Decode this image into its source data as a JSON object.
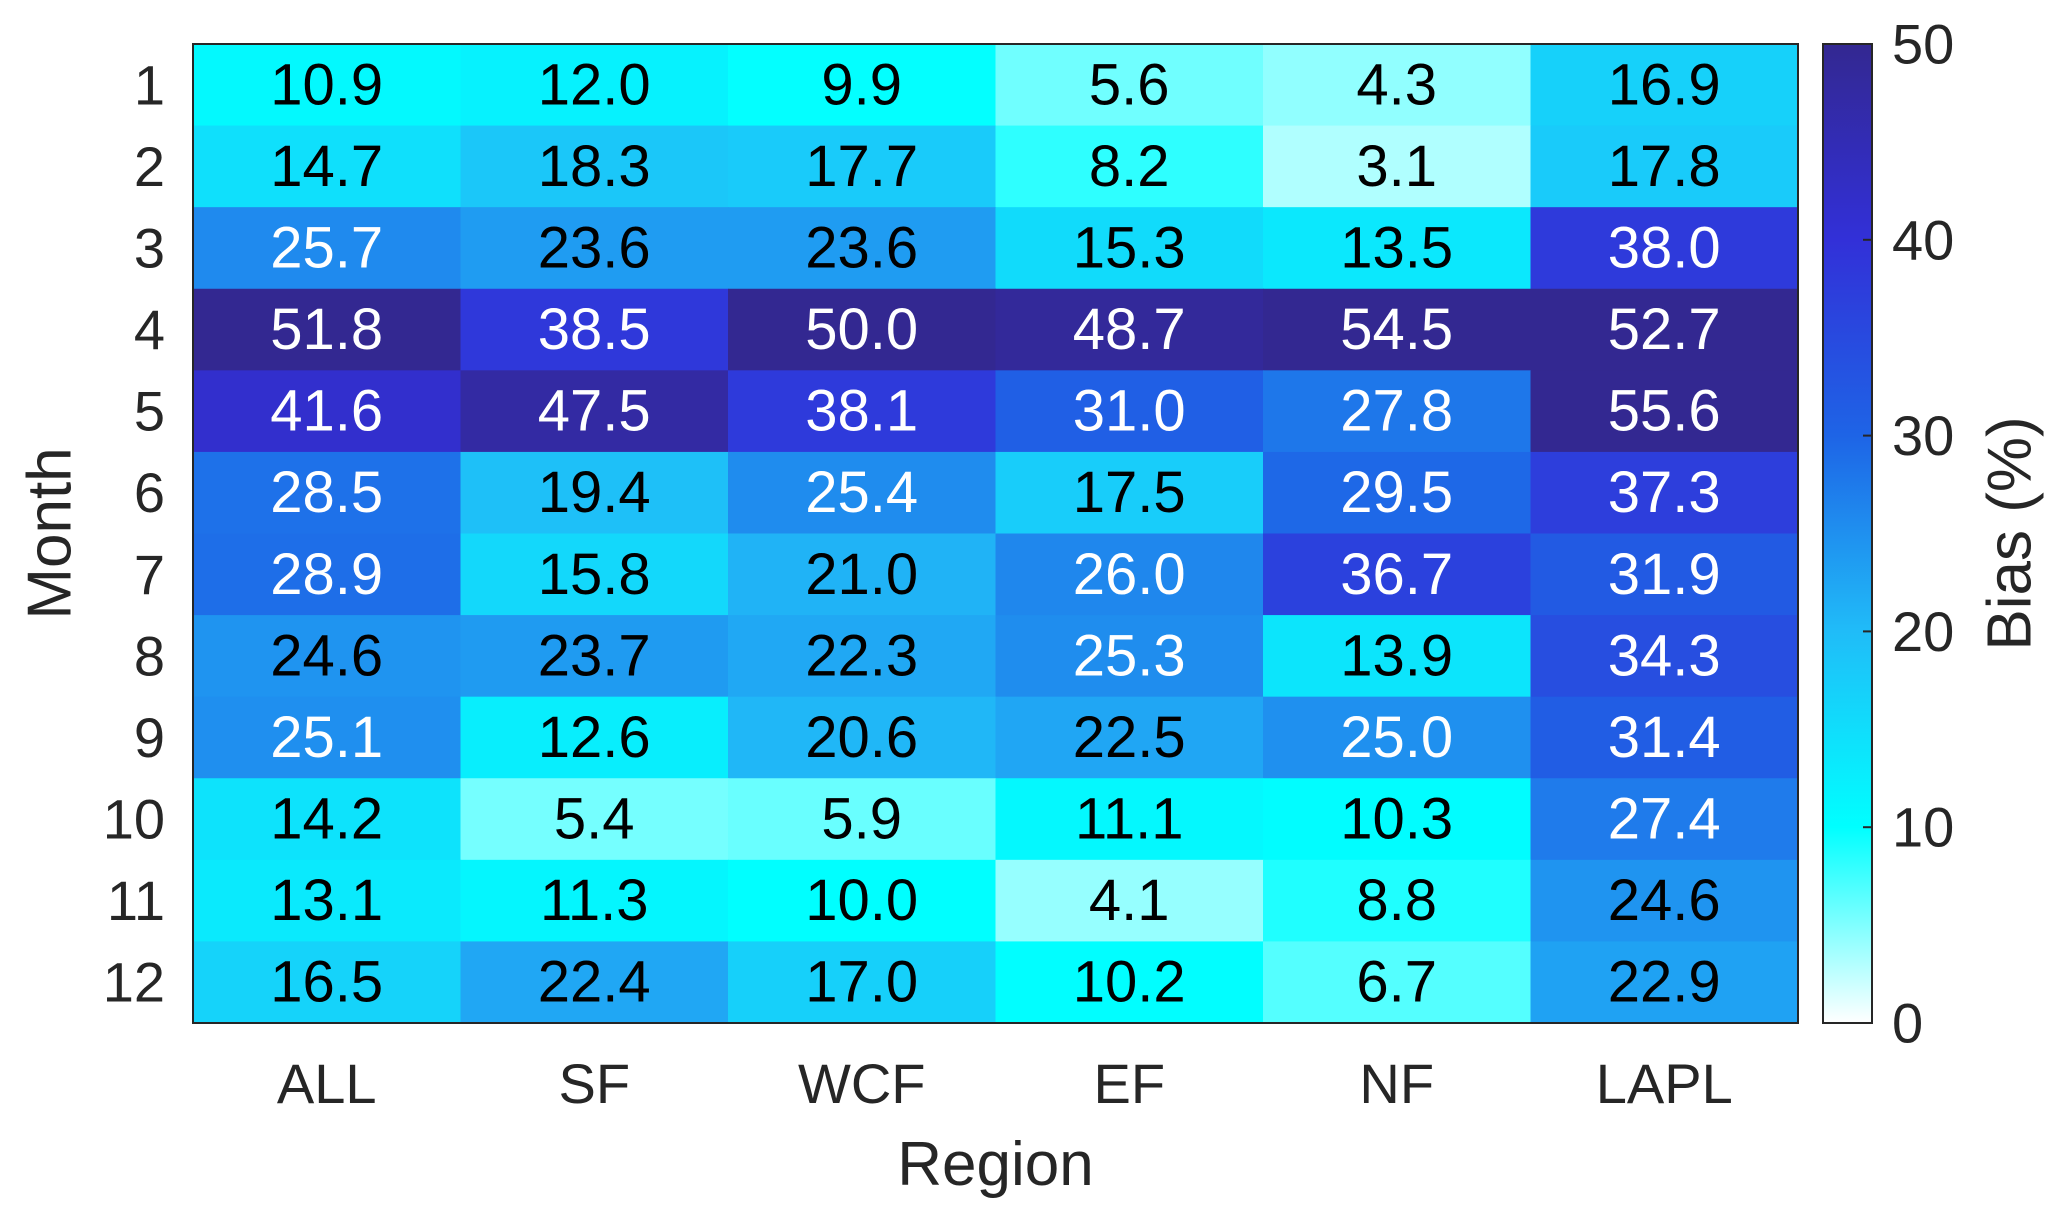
{
  "chart_data": {
    "type": "heatmap",
    "title": "",
    "xlabel": "Region",
    "ylabel": "Month",
    "x_categories": [
      "ALL",
      "SF",
      "WCF",
      "EF",
      "NF",
      "LAPL"
    ],
    "y_categories": [
      "1",
      "2",
      "3",
      "4",
      "5",
      "6",
      "7",
      "8",
      "9",
      "10",
      "11",
      "12"
    ],
    "values": [
      [
        10.9,
        12.0,
        9.9,
        5.6,
        4.3,
        16.9
      ],
      [
        14.7,
        18.3,
        17.7,
        8.2,
        3.1,
        17.8
      ],
      [
        25.7,
        23.6,
        23.6,
        15.3,
        13.5,
        38.0
      ],
      [
        51.8,
        38.5,
        50.0,
        48.7,
        54.5,
        52.7
      ],
      [
        41.6,
        47.5,
        38.1,
        31.0,
        27.8,
        55.6
      ],
      [
        28.5,
        19.4,
        25.4,
        17.5,
        29.5,
        37.3
      ],
      [
        28.9,
        15.8,
        21.0,
        26.0,
        36.7,
        31.9
      ],
      [
        24.6,
        23.7,
        22.3,
        25.3,
        13.9,
        34.3
      ],
      [
        25.1,
        12.6,
        20.6,
        22.5,
        25.0,
        31.4
      ],
      [
        14.2,
        5.4,
        5.9,
        11.1,
        10.3,
        27.4
      ],
      [
        13.1,
        11.3,
        10.0,
        4.1,
        8.8,
        24.6
      ],
      [
        16.5,
        22.4,
        17.0,
        10.2,
        6.7,
        22.9
      ]
    ],
    "value_labels": [
      [
        "10.9",
        "12.0",
        "9.9",
        "5.6",
        "4.3",
        "16.9"
      ],
      [
        "14.7",
        "18.3",
        "17.7",
        "8.2",
        "3.1",
        "17.8"
      ],
      [
        "25.7",
        "23.6",
        "23.6",
        "15.3",
        "13.5",
        "38.0"
      ],
      [
        "51.8",
        "38.5",
        "50.0",
        "48.7",
        "54.5",
        "52.7"
      ],
      [
        "41.6",
        "47.5",
        "38.1",
        "31.0",
        "27.8",
        "55.6"
      ],
      [
        "28.5",
        "19.4",
        "25.4",
        "17.5",
        "29.5",
        "37.3"
      ],
      [
        "28.9",
        "15.8",
        "21.0",
        "26.0",
        "36.7",
        "31.9"
      ],
      [
        "24.6",
        "23.7",
        "22.3",
        "25.3",
        "13.9",
        "34.3"
      ],
      [
        "25.1",
        "12.6",
        "20.6",
        "22.5",
        "25.0",
        "31.4"
      ],
      [
        "14.2",
        "5.4",
        "5.9",
        "11.1",
        "10.3",
        "27.4"
      ],
      [
        "13.1",
        "11.3",
        "10.0",
        "4.1",
        "8.8",
        "24.6"
      ],
      [
        "16.5",
        "22.4",
        "17.0",
        "10.2",
        "6.7",
        "22.9"
      ]
    ],
    "label_colors": [
      [
        "black",
        "black",
        "black",
        "black",
        "black",
        "black"
      ],
      [
        "black",
        "black",
        "black",
        "black",
        "black",
        "black"
      ],
      [
        "white",
        "black",
        "black",
        "black",
        "black",
        "white"
      ],
      [
        "white",
        "white",
        "white",
        "white",
        "white",
        "white"
      ],
      [
        "white",
        "white",
        "white",
        "white",
        "white",
        "white"
      ],
      [
        "white",
        "black",
        "white",
        "black",
        "white",
        "white"
      ],
      [
        "white",
        "black",
        "black",
        "white",
        "white",
        "white"
      ],
      [
        "black",
        "black",
        "black",
        "white",
        "black",
        "white"
      ],
      [
        "white",
        "black",
        "black",
        "black",
        "white",
        "white"
      ],
      [
        "black",
        "black",
        "black",
        "black",
        "black",
        "white"
      ],
      [
        "black",
        "black",
        "black",
        "black",
        "black",
        "black"
      ],
      [
        "black",
        "black",
        "black",
        "black",
        "black",
        "black"
      ]
    ],
    "colorbar": {
      "label": "Bias (%)",
      "range": [
        0,
        50
      ],
      "ticks": [
        0,
        10,
        20,
        30,
        40,
        50
      ],
      "tick_labels": [
        "0",
        "10",
        "20",
        "30",
        "40",
        "50"
      ],
      "colormap_stops": [
        {
          "value": 0,
          "color": "#ffffff"
        },
        {
          "value": 10,
          "color": "#00ffff"
        },
        {
          "value": 20,
          "color": "#20bcf8"
        },
        {
          "value": 30,
          "color": "#1e64e6"
        },
        {
          "value": 40,
          "color": "#3230d8"
        },
        {
          "value": 50,
          "color": "#332891"
        }
      ]
    },
    "grid": false
  }
}
